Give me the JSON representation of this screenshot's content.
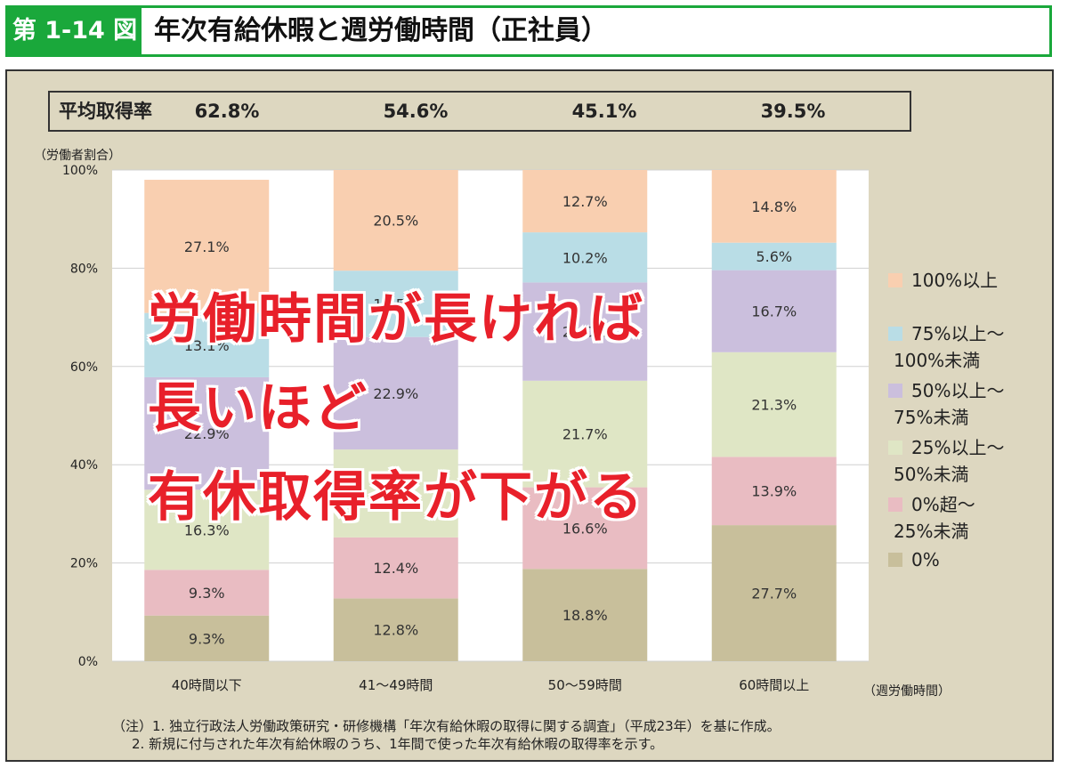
{
  "header": {
    "figure_label": "第 1-14 図",
    "title": "年次有給休暇と週労働時間（正社員）"
  },
  "rate_row": {
    "label": "平均取得率",
    "values": [
      "62.8%",
      "54.6%",
      "45.1%",
      "39.5%"
    ]
  },
  "overlay_text": [
    "労働時間が長ければ",
    "長いほど",
    "有休取得率が下がる"
  ],
  "notes": [
    "（注）1. 独立行政法人労働政策研究・研修機構「年次有給休暇の取得に関する調査」（平成23年）を基に作成。",
    "2. 新規に付与された年次有給休暇のうち、1年間で使った年次有給休暇の取得率を示す。"
  ],
  "chart_data": {
    "type": "bar",
    "stacked": true,
    "ylabel": "（労働者割合）",
    "xlabel": "（週労働時間）",
    "ylim": [
      0,
      100
    ],
    "y_ticks": [
      "0%",
      "20%",
      "40%",
      "60%",
      "80%",
      "100%"
    ],
    "grid": true,
    "legend_position": "right",
    "categories": [
      "40時間以下",
      "41～49時間",
      "50～59時間",
      "60時間以上"
    ],
    "series": [
      {
        "name": "0%",
        "color": "#c8bf9b",
        "values": [
          9.3,
          12.8,
          18.8,
          27.7
        ],
        "labels": [
          "9.3%",
          "12.8%",
          "18.8%",
          "27.7%"
        ]
      },
      {
        "name": "0%超～25%未満",
        "color": "#e9bcc2",
        "values": [
          9.3,
          12.4,
          16.6,
          13.9
        ],
        "labels": [
          "9.3%",
          "12.4%",
          "16.6%",
          "13.9%"
        ]
      },
      {
        "name": "25%以上～50%未満",
        "color": "#dfe6c5",
        "values": [
          16.3,
          17.9,
          21.7,
          21.3
        ],
        "labels": [
          "16.3%",
          "17.9%",
          "21.7%",
          "21.3%"
        ]
      },
      {
        "name": "50%以上～75%未満",
        "color": "#cbbfdd",
        "values": [
          22.9,
          22.9,
          20.0,
          16.7
        ],
        "labels": [
          "22.9%",
          "22.9%",
          "20.0%",
          "16.7%"
        ]
      },
      {
        "name": "75%以上～100%未満",
        "color": "#b9dde6",
        "values": [
          13.1,
          13.5,
          10.2,
          5.6
        ],
        "labels": [
          "13.1%",
          "13.5%",
          "10.2%",
          "5.6%"
        ]
      },
      {
        "name": "100%以上",
        "color": "#f9cfb0",
        "values": [
          27.1,
          20.5,
          12.7,
          14.8
        ],
        "labels": [
          "27.1%",
          "20.5%",
          "12.7%",
          "14.8%"
        ]
      }
    ],
    "legend": [
      {
        "line1": "100%以上",
        "line2": "",
        "color": "#f9cfb0"
      },
      {
        "line1": "75%以上～",
        "line2": "100%未満",
        "color": "#b9dde6"
      },
      {
        "line1": "50%以上～",
        "line2": "75%未満",
        "color": "#cbbfdd"
      },
      {
        "line1": "25%以上～",
        "line2": "50%未満",
        "color": "#dfe6c5"
      },
      {
        "line1": "0%超～",
        "line2": "25%未満",
        "color": "#e9bcc2"
      },
      {
        "line1": "0%",
        "line2": "",
        "color": "#c8bf9b"
      }
    ]
  }
}
